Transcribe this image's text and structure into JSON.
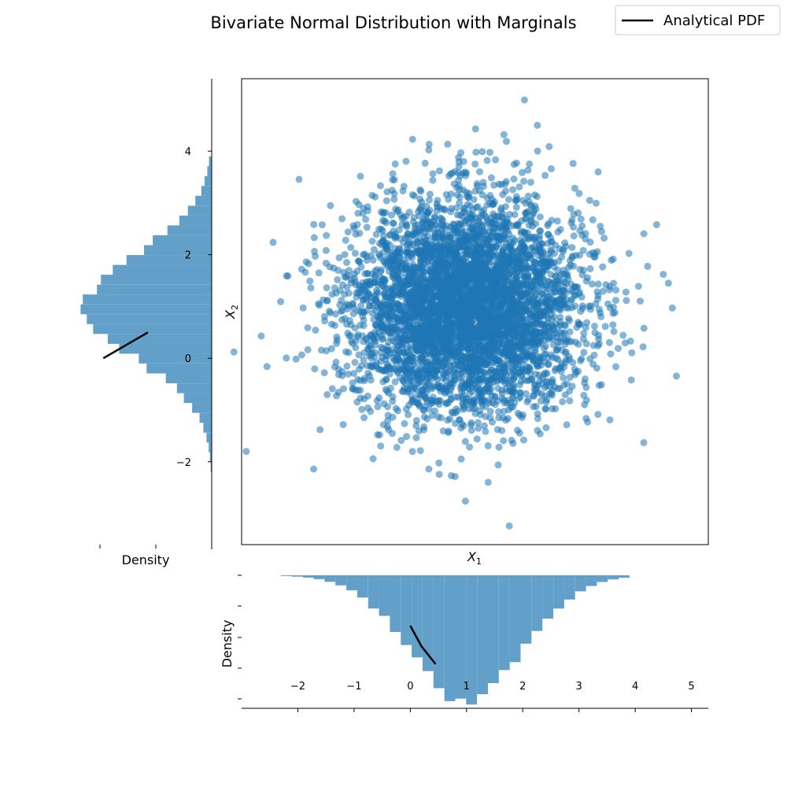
{
  "title": "Bivariate Normal Distribution with Marginals",
  "legend": {
    "entries": [
      {
        "label": "Analytical PDF",
        "color": "#000000"
      }
    ],
    "placement": "top-right"
  },
  "chart_data": [
    {
      "id": "joint-scatter",
      "type": "scatter",
      "xlabel": "X",
      "xlabel_sub": "1",
      "ylabel": "X",
      "ylabel_sub": "2",
      "xlim": [
        -3.0,
        5.3
      ],
      "ylim": [
        -3.6,
        5.4
      ],
      "color": "#1f77b4",
      "n_points": 5000,
      "distribution": {
        "mean": [
          1.0,
          1.0
        ],
        "std": [
          1.0,
          1.0
        ]
      },
      "outliers": [
        [
          2.03,
          4.99
        ],
        [
          1.16,
          4.43
        ],
        [
          2.26,
          4.5
        ],
        [
          0.04,
          4.23
        ],
        [
          1.71,
          4.19
        ],
        [
          2.47,
          4.09
        ],
        [
          0.9,
          3.97
        ],
        [
          1.28,
          3.99
        ],
        [
          1.89,
          3.77
        ],
        [
          0.95,
          3.8
        ],
        [
          3.34,
          3.6
        ],
        [
          -2.44,
          2.24
        ],
        [
          4.38,
          2.58
        ],
        [
          4.66,
          0.97
        ],
        [
          -2.65,
          0.43
        ],
        [
          4.5,
          1.62
        ],
        [
          4.59,
          1.45
        ],
        [
          4.14,
          0.22
        ],
        [
          3.55,
          -1.19
        ],
        [
          -1.72,
          -2.14
        ],
        [
          0.33,
          -2.14
        ],
        [
          0.98,
          -2.76
        ],
        [
          1.76,
          -3.24
        ],
        [
          0.73,
          -2.27
        ],
        [
          3.93,
          -0.42
        ],
        [
          -2.55,
          -0.16
        ],
        [
          -2.2,
          1.59
        ],
        [
          -1.93,
          1.72
        ]
      ]
    },
    {
      "id": "x2-marginal",
      "type": "bar",
      "orientation": "horizontal",
      "xlabel": "Density",
      "ylim": [
        -3.6,
        5.4
      ],
      "y_ticks": [
        "4",
        "2",
        "0",
        "−2"
      ],
      "y_tick_values": [
        4,
        2,
        0,
        -2
      ],
      "bin_range": [
        -2.2,
        3.9
      ],
      "bins": 32,
      "density_peak": 0.4,
      "series": [
        {
          "name": "Analytical PDF",
          "x": [
            0.34,
            0.27,
            0.2
          ],
          "y": [
            0.0,
            0.25,
            0.5
          ]
        }
      ]
    },
    {
      "id": "x1-marginal",
      "type": "bar",
      "ylabel": "Density",
      "xlim": [
        -3.0,
        5.3
      ],
      "x_ticks": [
        "−2",
        "−1",
        "0",
        "1",
        "2",
        "3",
        "4",
        "5"
      ],
      "x_tick_values": [
        -2,
        -1,
        0,
        1,
        2,
        3,
        4,
        5
      ],
      "bin_range": [
        -2.3,
        3.9
      ],
      "bins": 32,
      "density_peak": 0.42,
      "series": [
        {
          "name": "Analytical PDF",
          "x": [
            0.0,
            0.2,
            0.45
          ],
          "y": [
            0.17,
            0.24,
            0.3
          ]
        }
      ]
    }
  ]
}
